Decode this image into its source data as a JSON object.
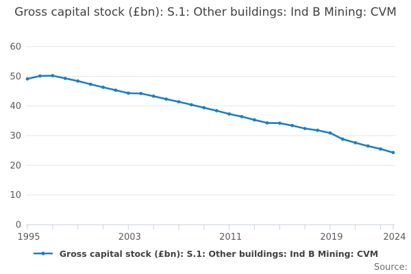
{
  "chart": {
    "source_label": "Source:"
  },
  "chart_data": {
    "type": "line",
    "title": "Gross capital stock (£bn): S.1: Other buildings: Ind B Mining: CVM",
    "xlabel": "",
    "ylabel": "",
    "x": [
      1995,
      1996,
      1997,
      1998,
      1999,
      2000,
      2001,
      2002,
      2003,
      2004,
      2005,
      2006,
      2007,
      2008,
      2009,
      2010,
      2011,
      2012,
      2013,
      2014,
      2015,
      2016,
      2017,
      2018,
      2019,
      2020,
      2021,
      2022,
      2023,
      2024
    ],
    "series": [
      {
        "name": "Gross capital stock (£bn): S.1: Other buildings: Ind B Mining: CVM",
        "color": "#1b7ec2",
        "values": [
          49.1,
          50.1,
          50.2,
          49.3,
          48.4,
          47.3,
          46.3,
          45.3,
          44.3,
          44.2,
          43.3,
          42.3,
          41.4,
          40.4,
          39.4,
          38.4,
          37.3,
          36.4,
          35.3,
          34.3,
          34.2,
          33.4,
          32.4,
          31.8,
          30.9,
          28.8,
          27.6,
          26.5,
          25.5,
          24.3
        ]
      }
    ],
    "xlim": [
      1995,
      2024
    ],
    "ylim": [
      0,
      60
    ],
    "yticks": [
      0,
      10,
      20,
      30,
      40,
      50,
      60
    ],
    "xtick_marks": [
      1995,
      1997,
      1999,
      2001,
      2003,
      2005,
      2007,
      2009,
      2011,
      2013,
      2015,
      2017,
      2019,
      2021,
      2023,
      2024
    ],
    "xtick_labels": [
      1995,
      2003,
      2011,
      2019,
      2024
    ],
    "grid": "horizontal",
    "legend_position": "bottom"
  },
  "colors": {
    "background": "#ffffff",
    "series_line": "#1b7ec2",
    "gridline": "#e6e6e6",
    "axis_and_ticks": "#c6d2de",
    "axis_labels": "#595959",
    "title_text": "#414042",
    "source_text": "#6e6e6e"
  }
}
